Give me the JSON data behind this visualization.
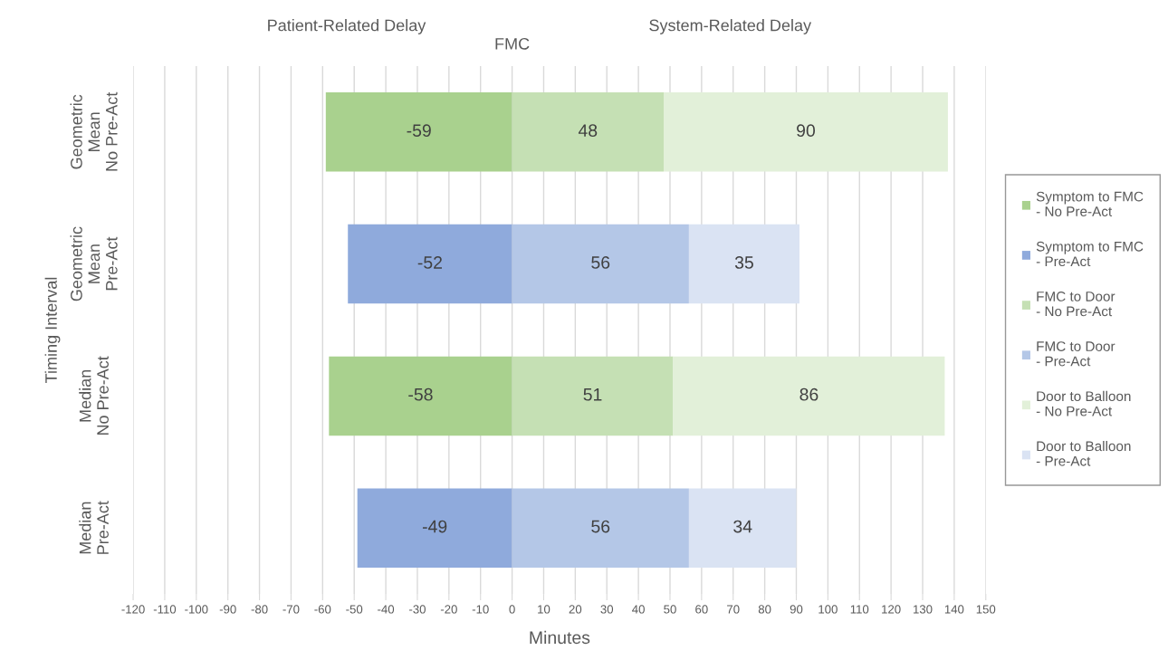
{
  "chart_data": {
    "type": "bar",
    "orientation": "horizontal",
    "stacked": true,
    "xlabel": "Minutes",
    "ylabel": "Timing Interval",
    "categories": [
      "Geometric\nMean\nNo Pre-Act",
      "Geometric\nMean\nPre-Act",
      "Median\nNo Pre-Act",
      "Median\nPre-Act"
    ],
    "series": [
      {
        "name": "Symptom to FMC\n- No Pre-Act",
        "color": "#a9d18e",
        "values": [
          -59,
          null,
          -58,
          null
        ]
      },
      {
        "name": "Symptom to FMC\n- Pre-Act",
        "color": "#8faadc",
        "values": [
          null,
          -52,
          null,
          -49
        ]
      },
      {
        "name": "FMC to Door\n- No Pre-Act",
        "color": "#c5e0b4",
        "values": [
          48,
          null,
          51,
          null
        ]
      },
      {
        "name": "FMC to Door\n- Pre-Act",
        "color": "#b4c7e7",
        "values": [
          null,
          56,
          null,
          56
        ]
      },
      {
        "name": "Door to Balloon\n- No Pre-Act",
        "color": "#e2f0d9",
        "values": [
          90,
          null,
          86,
          null
        ]
      },
      {
        "name": "Door to Balloon\n- Pre-Act",
        "color": "#dae3f3",
        "values": [
          null,
          35,
          null,
          34
        ]
      }
    ],
    "xlim": [
      -120,
      150
    ],
    "xticks": [
      -120,
      -110,
      -100,
      -90,
      -80,
      -70,
      -60,
      -50,
      -40,
      -30,
      -20,
      -10,
      0,
      10,
      20,
      30,
      40,
      50,
      60,
      70,
      80,
      90,
      100,
      110,
      120,
      130,
      140,
      150
    ],
    "annotations": [
      "Patient-Related Delay",
      "System-Related Delay",
      "FMC"
    ],
    "data_labels": true,
    "grid": "x",
    "legend": "right"
  }
}
